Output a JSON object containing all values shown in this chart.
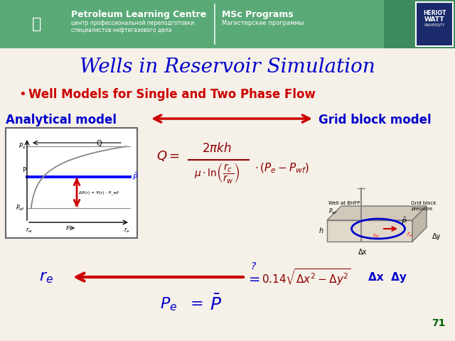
{
  "title": "Wells in Reservoir Simulation",
  "bullet": "Well Models for Single and Two Phase Flow",
  "analytical_label": "Analytical model",
  "grid_label": "Grid block model",
  "slide_number": "71",
  "header_bg_color": "#5aaa78",
  "header_text1": "Petroleum Learning Centre",
  "header_text2": "MSc Programs",
  "header_subtext1": "центр профессиональной переподготовки",
  "header_subtext2": "Магистерские программы",
  "header_subtext3": "специалистов нефтегазового дела",
  "bg_color": "#f5f0e8",
  "title_color": "#0000cc",
  "bullet_color": "#cc0000",
  "label_color": "#0000cc",
  "arrow_color": "#cc0000",
  "formula_color": "#8b0000",
  "slide_num_color": "#006600",
  "hw_bg": "#1a2a6a",
  "diag_bg": "white",
  "diag_edge": "#666666"
}
